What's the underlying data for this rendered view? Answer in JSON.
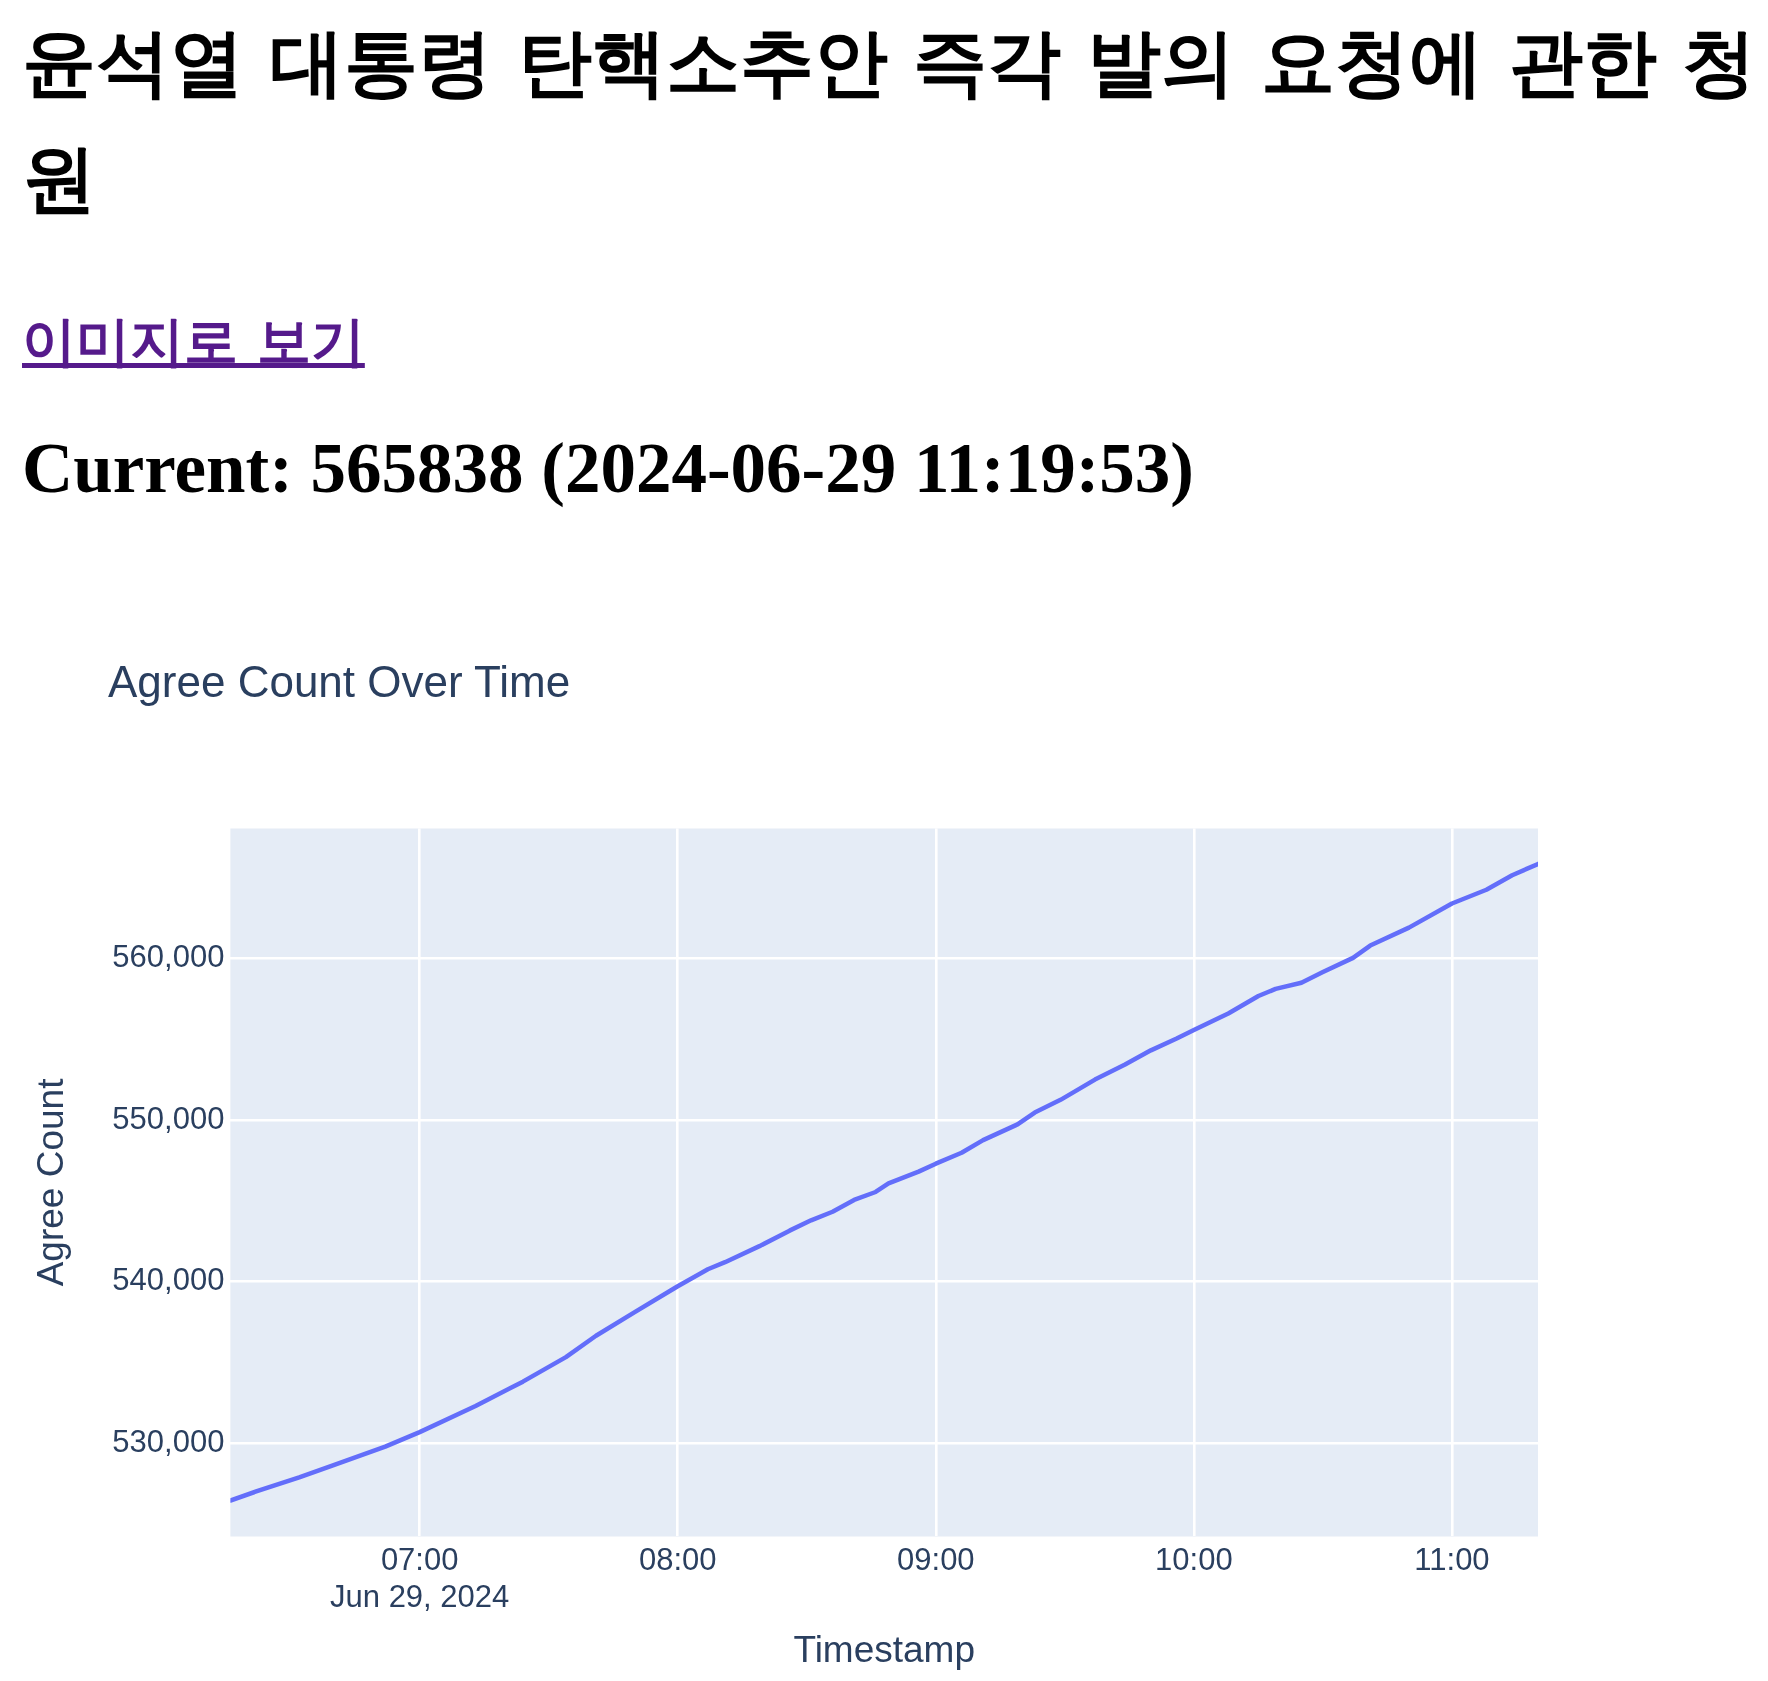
{
  "chart_data": {
    "type": "line",
    "title": "윤석열 대통령 탄핵소추안 즉각 발의 요청에 관한 청원",
    "subtitle": "Agree Count Over Time",
    "annotations": [
      "이미지로 보기",
      "Current: 565838 (2024-06-29 11:19:53)"
    ],
    "xlabel": "Timestamp",
    "ylabel": "Agree Count",
    "x": [
      "2024-06-29T06:16",
      "2024-06-29T06:22",
      "2024-06-29T06:32",
      "2024-06-29T06:40",
      "2024-06-29T06:52",
      "2024-06-29T07:00",
      "2024-06-29T07:13",
      "2024-06-29T07:24",
      "2024-06-29T07:34",
      "2024-06-29T07:41",
      "2024-06-29T07:50",
      "2024-06-29T08:00",
      "2024-06-29T08:07",
      "2024-06-29T08:11",
      "2024-06-29T08:19",
      "2024-06-29T08:26",
      "2024-06-29T08:31",
      "2024-06-29T08:36",
      "2024-06-29T08:41",
      "2024-06-29T08:46",
      "2024-06-29T08:49",
      "2024-06-29T08:56",
      "2024-06-29T09:00",
      "2024-06-29T09:06",
      "2024-06-29T09:11",
      "2024-06-29T09:19",
      "2024-06-29T09:23",
      "2024-06-29T09:29",
      "2024-06-29T09:37",
      "2024-06-29T09:44",
      "2024-06-29T09:50",
      "2024-06-29T09:56",
      "2024-06-29T10:00",
      "2024-06-29T10:08",
      "2024-06-29T10:15",
      "2024-06-29T10:19",
      "2024-06-29T10:25",
      "2024-06-29T10:30",
      "2024-06-29T10:37",
      "2024-06-29T10:41",
      "2024-06-29T10:50",
      "2024-06-29T11:00",
      "2024-06-29T11:08",
      "2024-06-29T11:14",
      "2024-06-29T11:20"
    ],
    "values": [
      526470,
      527030,
      527900,
      528660,
      529800,
      530700,
      532310,
      533820,
      535340,
      536660,
      538120,
      539720,
      540770,
      541210,
      542200,
      543160,
      543800,
      544330,
      545060,
      545550,
      546080,
      546810,
      547300,
      547980,
      548760,
      549730,
      550460,
      551250,
      552500,
      553430,
      554310,
      555040,
      555570,
      556590,
      557670,
      558110,
      558490,
      559150,
      560030,
      560790,
      561900,
      563390,
      564240,
      565140,
      565838
    ],
    "color": "#636efa",
    "xlim": [
      "2024-06-29T06:16",
      "2024-06-29T11:20"
    ],
    "xticks": [
      {
        "value": "2024-06-29T07:00",
        "label": "07:00\nJun 29, 2024"
      },
      {
        "value": "2024-06-29T08:00",
        "label": "08:00"
      },
      {
        "value": "2024-06-29T09:00",
        "label": "09:00"
      },
      {
        "value": "2024-06-29T10:00",
        "label": "10:00"
      },
      {
        "value": "2024-06-29T11:00",
        "label": "11:00"
      }
    ],
    "ylim": [
      524250,
      568030
    ],
    "yticks": [
      {
        "value": 530000,
        "label": "530,000"
      },
      {
        "value": 540000,
        "label": "540,000"
      },
      {
        "value": 550000,
        "label": "550,000"
      },
      {
        "value": 560000,
        "label": "560,000"
      }
    ],
    "grid": true
  }
}
